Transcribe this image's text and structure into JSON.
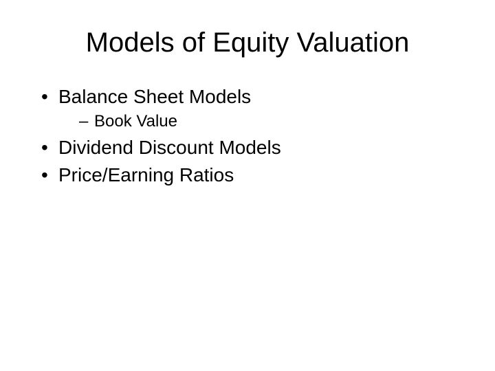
{
  "title": "Models of Equity Valuation",
  "bullets": {
    "item1": "Balance Sheet Models",
    "item1_sub1": "Book Value",
    "item2": "Dividend Discount Models",
    "item3": "Price/Earning Ratios"
  },
  "styling": {
    "background_color": "#ffffff",
    "text_color": "#000000",
    "title_fontsize": 40,
    "bullet_fontsize": 28,
    "sub_bullet_fontsize": 24,
    "font_family": "Arial"
  }
}
